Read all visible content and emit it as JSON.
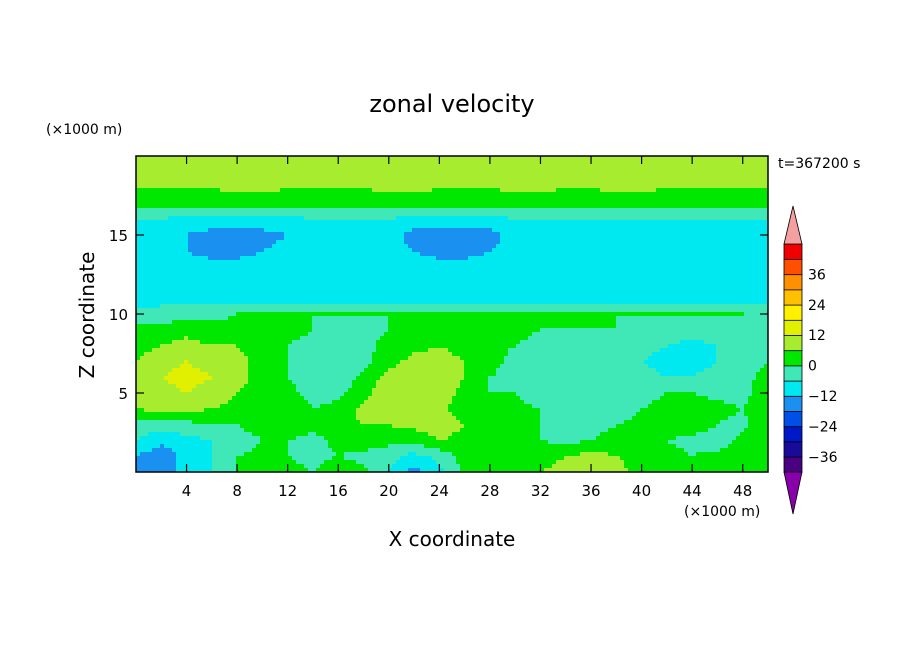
{
  "chart_data": {
    "type": "heatmap",
    "title": "zonal velocity",
    "xlabel": "X coordinate",
    "ylabel": "Z coordinate",
    "x_unit": "(×1000 m)",
    "y_unit": "(×1000 m)",
    "time_label": "t=367200 s",
    "xlim": [
      0,
      50
    ],
    "ylim": [
      0,
      20
    ],
    "xticks": [
      4,
      8,
      12,
      16,
      20,
      24,
      28,
      32,
      36,
      40,
      44,
      48
    ],
    "yticks": [
      5,
      10,
      15
    ],
    "colorbar": {
      "levels": [
        -42,
        -36,
        -30,
        -24,
        -18,
        -12,
        -6,
        0,
        6,
        12,
        18,
        24,
        30,
        36,
        42
      ],
      "labels": [
        -36,
        -24,
        -12,
        0,
        12,
        24,
        36
      ],
      "colors": [
        "#4b0082",
        "#1a0a9a",
        "#0018c8",
        "#0050e8",
        "#1a90f0",
        "#00e8f0",
        "#40e8b8",
        "#00e800",
        "#a8ec30",
        "#e0f000",
        "#fff000",
        "#ffc000",
        "#ff9000",
        "#ff5000",
        "#f00000"
      ],
      "under_color": "#8800aa",
      "over_color": "#f4a0a0"
    },
    "fields": {
      "x": [
        0,
        2,
        4,
        6,
        8,
        10,
        12,
        14,
        16,
        18,
        20,
        22,
        24,
        26,
        28,
        30,
        32,
        34,
        36,
        38,
        40,
        42,
        44,
        46,
        48,
        50
      ],
      "z": [
        0,
        1,
        2,
        3,
        4,
        5,
        6,
        7,
        8,
        9,
        10,
        11,
        12,
        13,
        14,
        15,
        16,
        17,
        18,
        19,
        20
      ],
      "values": [
        [
          -12,
          -14,
          -10,
          -6,
          0,
          4,
          2,
          0,
          4,
          2,
          -6,
          -14,
          -8,
          2,
          4,
          4,
          6,
          8,
          10,
          8,
          4,
          0,
          2,
          4,
          6,
          4
        ],
        [
          -12,
          -16,
          -10,
          -6,
          0,
          2,
          0,
          -2,
          0,
          -2,
          -4,
          -8,
          -4,
          2,
          4,
          4,
          4,
          6,
          8,
          6,
          4,
          2,
          0,
          2,
          4,
          2
        ],
        [
          -6,
          -10,
          -8,
          -6,
          -4,
          0,
          0,
          -2,
          2,
          4,
          2,
          2,
          6,
          4,
          2,
          0,
          0,
          -2,
          0,
          2,
          2,
          0,
          -2,
          -4,
          2,
          4
        ],
        [
          -2,
          -4,
          -2,
          0,
          0,
          4,
          6,
          2,
          4,
          6,
          6,
          8,
          10,
          6,
          2,
          2,
          0,
          -2,
          -2,
          0,
          2,
          4,
          4,
          0,
          -2,
          6
        ],
        [
          6,
          8,
          8,
          6,
          4,
          6,
          4,
          0,
          2,
          8,
          10,
          10,
          8,
          2,
          0,
          2,
          0,
          -4,
          -6,
          -4,
          0,
          2,
          4,
          2,
          0,
          6
        ],
        [
          8,
          10,
          12,
          10,
          6,
          4,
          2,
          -2,
          -2,
          4,
          10,
          12,
          10,
          4,
          0,
          0,
          -4,
          -6,
          -6,
          -4,
          -2,
          0,
          0,
          -2,
          -2,
          4
        ],
        [
          8,
          12,
          14,
          12,
          8,
          4,
          0,
          -4,
          -4,
          2,
          8,
          12,
          10,
          6,
          0,
          -2,
          -4,
          -6,
          -6,
          -4,
          -4,
          -6,
          -6,
          -4,
          -2,
          2
        ],
        [
          6,
          10,
          12,
          10,
          8,
          4,
          0,
          -4,
          -6,
          -2,
          4,
          8,
          8,
          6,
          2,
          -2,
          -2,
          -4,
          -4,
          -4,
          -6,
          -8,
          -8,
          -6,
          -4,
          0
        ],
        [
          4,
          6,
          8,
          6,
          6,
          2,
          0,
          -2,
          -6,
          -2,
          2,
          4,
          6,
          4,
          2,
          0,
          -2,
          -2,
          -2,
          -4,
          -4,
          -6,
          -8,
          -6,
          -4,
          -2
        ],
        [
          2,
          2,
          4,
          2,
          2,
          0,
          2,
          0,
          -2,
          -2,
          0,
          2,
          2,
          2,
          2,
          2,
          0,
          0,
          0,
          0,
          -2,
          -2,
          -4,
          -2,
          0,
          0
        ],
        [
          -4,
          -4,
          -2,
          -2,
          0,
          0,
          0,
          0,
          0,
          0,
          0,
          0,
          0,
          0,
          0,
          0,
          0,
          0,
          0,
          0,
          0,
          0,
          0,
          0,
          0,
          -2
        ],
        [
          -8,
          -8,
          -8,
          -8,
          -8,
          -8,
          -8,
          -8,
          -8,
          -8,
          -8,
          -8,
          -8,
          -8,
          -8,
          -8,
          -8,
          -8,
          -8,
          -8,
          -8,
          -8,
          -8,
          -8,
          -8,
          -8
        ],
        [
          -10,
          -10,
          -10,
          -10,
          -10,
          -10,
          -10,
          -10,
          -10,
          -10,
          -10,
          -10,
          -10,
          -10,
          -10,
          -10,
          -10,
          -10,
          -10,
          -10,
          -10,
          -10,
          -10,
          -10,
          -10,
          -10
        ],
        [
          -10,
          -10,
          -10,
          -10,
          -10,
          -10,
          -10,
          -10,
          -10,
          -10,
          -10,
          -10,
          -10,
          -10,
          -10,
          -10,
          -10,
          -10,
          -10,
          -10,
          -10,
          -10,
          -10,
          -10,
          -10,
          -10
        ],
        [
          -10,
          -10,
          -12,
          -14,
          -14,
          -12,
          -10,
          -10,
          -10,
          -10,
          -10,
          -12,
          -14,
          -14,
          -12,
          -10,
          -10,
          -10,
          -10,
          -10,
          -10,
          -10,
          -10,
          -10,
          -10,
          -10
        ],
        [
          -10,
          -10,
          -12,
          -14,
          -16,
          -14,
          -12,
          -10,
          -10,
          -10,
          -10,
          -14,
          -16,
          -16,
          -14,
          -10,
          -10,
          -10,
          -10,
          -10,
          -10,
          -10,
          -10,
          -10,
          -10,
          -10
        ],
        [
          -6,
          -6,
          -8,
          -8,
          -8,
          -8,
          -8,
          -6,
          -6,
          -6,
          -6,
          -8,
          -8,
          -8,
          -8,
          -6,
          -6,
          -6,
          -6,
          -6,
          -6,
          -6,
          -6,
          -6,
          -6,
          -6
        ],
        [
          2,
          2,
          2,
          2,
          2,
          2,
          2,
          2,
          2,
          2,
          2,
          2,
          2,
          2,
          2,
          2,
          2,
          2,
          2,
          2,
          2,
          2,
          2,
          2,
          2,
          2
        ],
        [
          6,
          6,
          6,
          6,
          8,
          8,
          6,
          6,
          6,
          6,
          8,
          8,
          6,
          6,
          6,
          8,
          8,
          6,
          6,
          8,
          8,
          6,
          6,
          6,
          6,
          6
        ],
        [
          8,
          8,
          8,
          8,
          10,
          8,
          8,
          8,
          8,
          8,
          10,
          8,
          8,
          8,
          8,
          10,
          10,
          8,
          8,
          10,
          10,
          8,
          8,
          8,
          8,
          8
        ],
        [
          6,
          6,
          6,
          6,
          6,
          6,
          6,
          6,
          6,
          6,
          6,
          6,
          6,
          6,
          6,
          6,
          6,
          6,
          6,
          6,
          6,
          6,
          6,
          6,
          6,
          6
        ]
      ]
    }
  }
}
